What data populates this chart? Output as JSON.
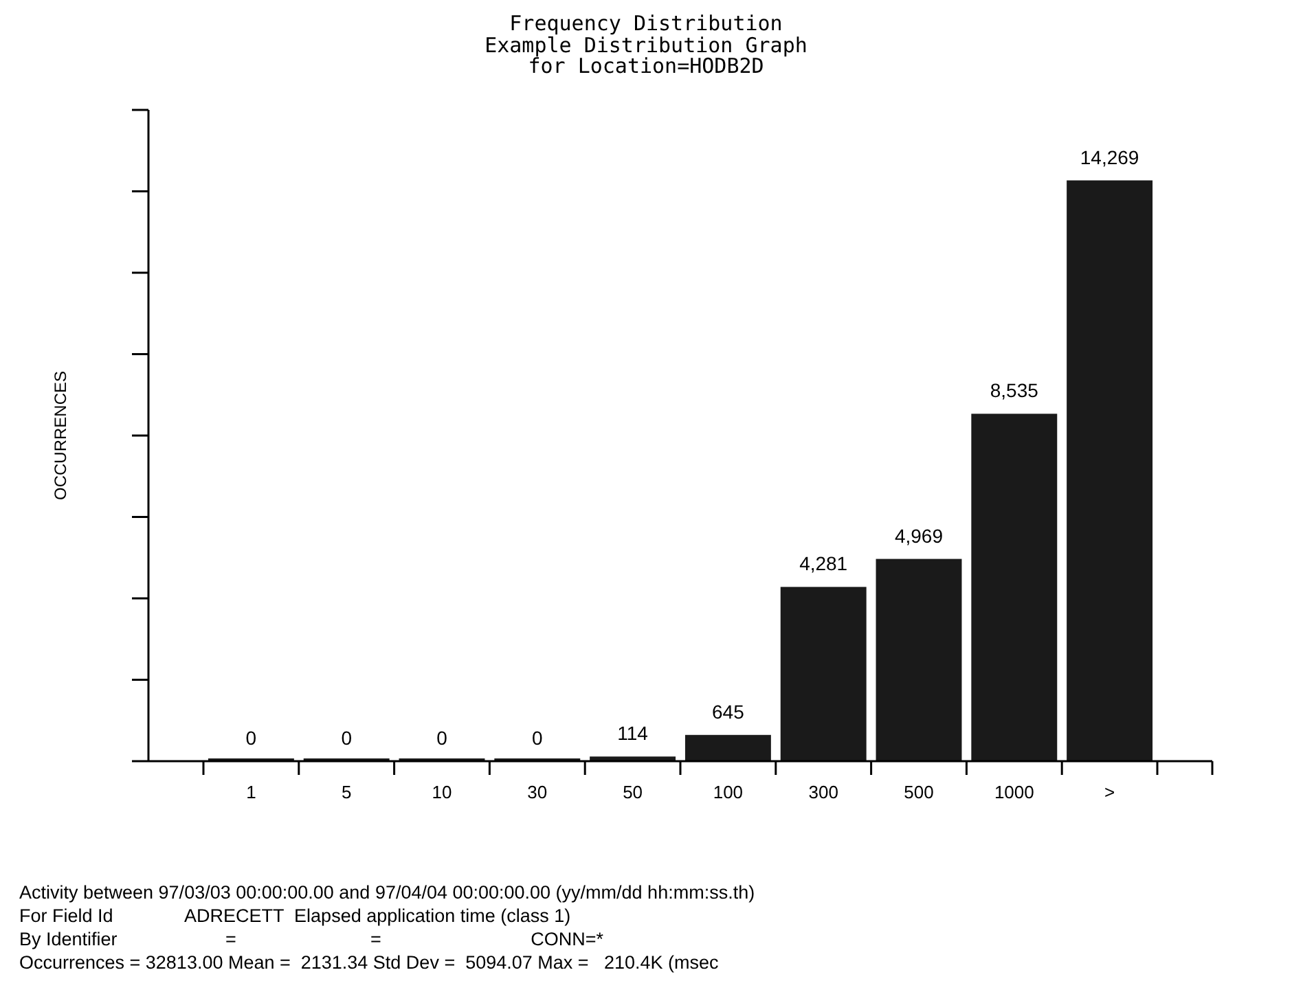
{
  "chart_data": {
    "type": "bar",
    "title": "Frequency Distribution",
    "subtitle": "Example Distribution Graph\nfor Location=HODB2D",
    "ylabel": "OCCURRENCES",
    "categories": [
      "1",
      "5",
      "10",
      "30",
      "50",
      "100",
      "300",
      "500",
      "1000",
      ">"
    ],
    "values": [
      0,
      0,
      0,
      0,
      114,
      645,
      4281,
      4969,
      8535,
      14269
    ],
    "value_labels": [
      "0",
      "0",
      "0",
      "0",
      "114",
      "645",
      "4,281",
      "4,969",
      "8,535",
      "14,269"
    ],
    "color": "#1a1a1a",
    "ylim": [
      0,
      16000
    ],
    "yticks": [
      {
        "value": 0,
        "label": null
      },
      {
        "value": 2000,
        "label": null
      },
      {
        "value": 4000,
        "label": null
      },
      {
        "value": 6000,
        "label": null
      },
      {
        "value": 8000,
        "label": null
      },
      {
        "value": 10000,
        "label": null
      },
      {
        "value": 12000,
        "label": null
      },
      {
        "value": 14000,
        "label": null
      },
      {
        "value": 16000,
        "label": null
      }
    ],
    "grid": false,
    "annotations": [
      "Activity between 97/03/03 00:00:00.00 and 97/04/04 00:00:00.00 (yy/mm/dd hh:mm:ss.th)",
      "For Field Id              ADRECETT  Elapsed application time (class 1)",
      "By Identifier                     =                          =                             CONN=*",
      "Occurrences = 32813.00 Mean =  2131.34 Std Dev =  5094.07 Max =   210.4K (msec"
    ]
  }
}
